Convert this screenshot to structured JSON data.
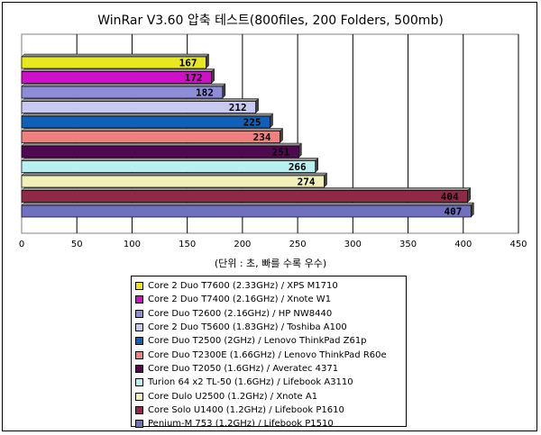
{
  "chart_data": {
    "type": "bar",
    "orientation": "horizontal",
    "title": "WinRar V3.60 압축 테스트(800files, 200 Folders, 500mb)",
    "xlabel": "(단위 : 초, 빠를 수록 우수)",
    "xlim": [
      0,
      450
    ],
    "xticks": [
      0,
      50,
      100,
      150,
      200,
      250,
      300,
      350,
      400,
      450
    ],
    "grid": true,
    "legend_position": "bottom",
    "series": [
      {
        "name": "Core 2 Duo T7600 (2.33GHz) / XPS M1710",
        "value": 167,
        "color": "#e8e820"
      },
      {
        "name": "Core 2 Duo T7400 (2.16GHz) / Xnote W1",
        "value": 172,
        "color": "#d010c8"
      },
      {
        "name": "Core Duo T2600 (2.16GHz) / HP NW8440",
        "value": 182,
        "color": "#8c8cd8"
      },
      {
        "name": "Core 2 Duo T5600 (1.83GHz) / Toshiba A100",
        "value": 212,
        "color": "#c8c8f0"
      },
      {
        "name": "Core Duo T2500 (2GHz) / Lenovo ThinkPad Z61p",
        "value": 225,
        "color": "#1060b8"
      },
      {
        "name": "Core Duo T2300E (1.66GHz) / Lenovo ThinkPad R60e",
        "value": 234,
        "color": "#f08080"
      },
      {
        "name": "Core Duo T2050 (1.6GHz) / Averatec 4371",
        "value": 251,
        "color": "#500850"
      },
      {
        "name": "Turion 64 x2 TL-50 (1.6GHz) / Lifebook A3110",
        "value": 266,
        "color": "#b8f0f0"
      },
      {
        "name": "Core Dulo U2500 (1.2GHz) / Xnote A1",
        "value": 274,
        "color": "#f0f0b8"
      },
      {
        "name": "Core Solo U1400 (1.2GHz) / Lifebook P1610",
        "value": 404,
        "color": "#902848"
      },
      {
        "name": "Penium-M 753 (1.2GHz) / Lifebook P1510",
        "value": 407,
        "color": "#7070c0"
      }
    ]
  }
}
